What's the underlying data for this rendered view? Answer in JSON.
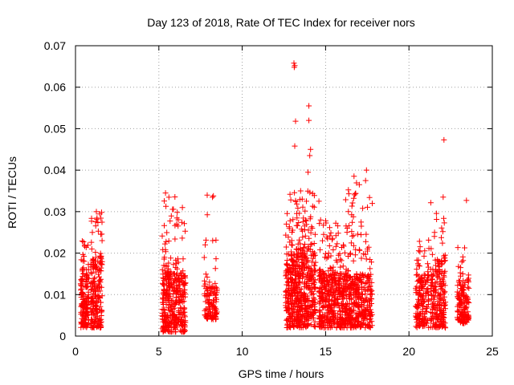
{
  "chart_data": {
    "type": "scatter",
    "title": "Day 123 of 2018, Rate Of TEC Index for receiver nors",
    "xlabel": "GPS time / hours",
    "ylabel": "ROTI / TECUs",
    "xlim": [
      0,
      25
    ],
    "ylim": [
      0,
      0.07
    ],
    "xticks": [
      0,
      5,
      10,
      15,
      20,
      25
    ],
    "yticks": [
      0,
      0.01,
      0.02,
      0.03,
      0.04,
      0.05,
      0.06,
      0.07
    ],
    "xtick_labels": [
      "0",
      "5",
      "10",
      "15",
      "20",
      "25"
    ],
    "ytick_labels": [
      "0",
      "0.01",
      "0.02",
      "0.03",
      "0.04",
      "0.05",
      "0.06",
      "0.07"
    ],
    "grid": true,
    "marker": "+",
    "color": "#ff0000",
    "clusters": [
      {
        "x_start": 0.3,
        "x_end": 0.8,
        "y_min": 0.002,
        "y_max": 0.015,
        "y_tail": 0.023,
        "count": 150
      },
      {
        "x_start": 0.9,
        "x_end": 1.6,
        "y_min": 0.002,
        "y_max": 0.018,
        "y_tail": 0.03,
        "count": 190
      },
      {
        "x_start": 5.2,
        "x_end": 6.6,
        "y_min": 0.001,
        "y_max": 0.015,
        "y_tail": 0.034,
        "count": 380
      },
      {
        "x_start": 7.7,
        "x_end": 8.5,
        "y_min": 0.004,
        "y_max": 0.012,
        "y_tail": 0.034,
        "count": 120
      },
      {
        "x_start": 12.6,
        "x_end": 14.4,
        "y_min": 0.002,
        "y_max": 0.02,
        "y_tail": 0.035,
        "count": 560
      },
      {
        "x_start": 14.6,
        "x_end": 16.2,
        "y_min": 0.002,
        "y_max": 0.015,
        "y_tail": 0.028,
        "count": 420
      },
      {
        "x_start": 16.2,
        "x_end": 17.8,
        "y_min": 0.002,
        "y_max": 0.015,
        "y_tail": 0.04,
        "count": 380
      },
      {
        "x_start": 20.4,
        "x_end": 21.2,
        "y_min": 0.002,
        "y_max": 0.014,
        "y_tail": 0.024,
        "count": 160
      },
      {
        "x_start": 21.3,
        "x_end": 22.2,
        "y_min": 0.002,
        "y_max": 0.018,
        "y_tail": 0.034,
        "count": 210
      },
      {
        "x_start": 22.9,
        "x_end": 23.6,
        "y_min": 0.003,
        "y_max": 0.012,
        "y_tail": 0.023,
        "count": 150
      }
    ],
    "highlight_points": [
      {
        "x": 13.1,
        "y": 0.0658
      },
      {
        "x": 13.15,
        "y": 0.0652
      },
      {
        "x": 13.12,
        "y": 0.0648
      },
      {
        "x": 14.0,
        "y": 0.0555
      },
      {
        "x": 14.0,
        "y": 0.052
      },
      {
        "x": 13.2,
        "y": 0.0518
      },
      {
        "x": 13.15,
        "y": 0.0458
      },
      {
        "x": 14.1,
        "y": 0.045
      },
      {
        "x": 14.05,
        "y": 0.0435
      },
      {
        "x": 13.95,
        "y": 0.0395
      },
      {
        "x": 17.45,
        "y": 0.04
      },
      {
        "x": 17.4,
        "y": 0.0375
      },
      {
        "x": 13.5,
        "y": 0.035
      },
      {
        "x": 13.6,
        "y": 0.033
      },
      {
        "x": 22.1,
        "y": 0.0473
      },
      {
        "x": 22.05,
        "y": 0.0335
      },
      {
        "x": 23.45,
        "y": 0.0327
      },
      {
        "x": 5.4,
        "y": 0.0345
      },
      {
        "x": 7.9,
        "y": 0.034
      },
      {
        "x": 1.25,
        "y": 0.03
      },
      {
        "x": 14.6,
        "y": 0.0325
      },
      {
        "x": 16.3,
        "y": 0.026
      }
    ]
  }
}
